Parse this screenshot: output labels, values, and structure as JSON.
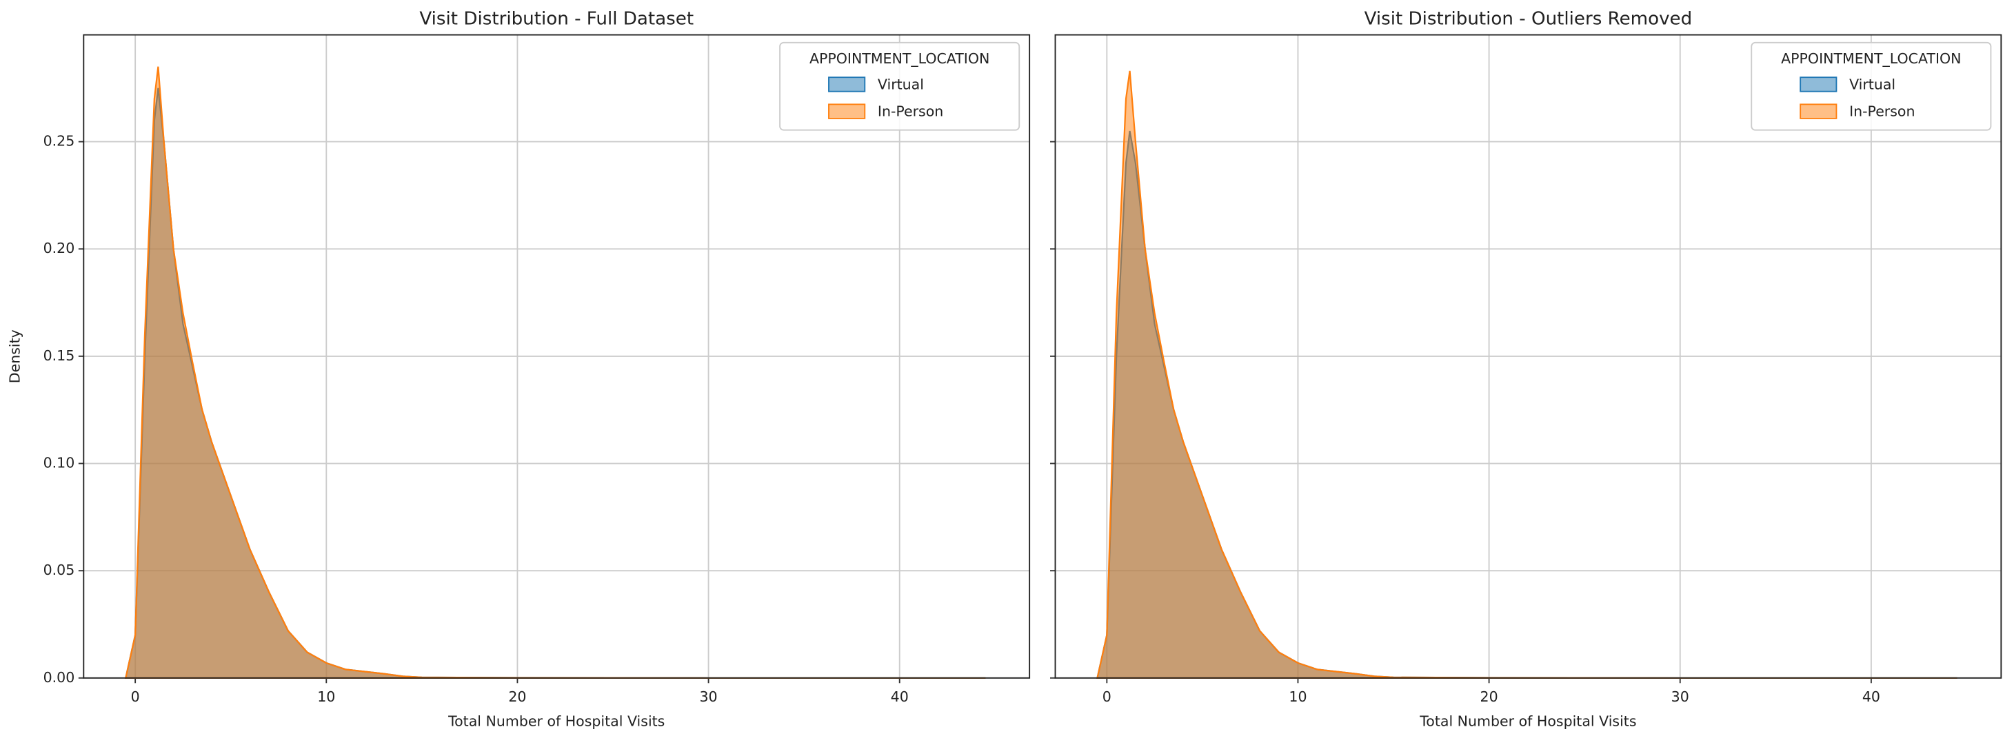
{
  "chart_data": [
    {
      "type": "kde",
      "title": "Visit Distribution - Full Dataset",
      "xlabel": "Total Number of Hospital Visits",
      "ylabel": "Density",
      "legend_title": "APPOINTMENT_LOCATION",
      "legend": "upper right",
      "grid": true,
      "x": [
        -0.5,
        0,
        0.5,
        1,
        1.2,
        1.5,
        2,
        2.5,
        3,
        3.5,
        4,
        5,
        6,
        7,
        8,
        9,
        10,
        11,
        12,
        13,
        14,
        15,
        20,
        30,
        44.5
      ],
      "series": [
        {
          "name": "Virtual",
          "color": "#1f77b4",
          "values": [
            0,
            0.02,
            0.15,
            0.26,
            0.275,
            0.25,
            0.2,
            0.165,
            0.145,
            0.125,
            0.11,
            0.085,
            0.06,
            0.04,
            0.022,
            0.012,
            0.007,
            0.004,
            0.003,
            0.002,
            0.0008,
            0.0003,
            0.0001,
            0,
            0
          ]
        },
        {
          "name": "In-Person",
          "color": "#ff7f0e",
          "values": [
            0,
            0.02,
            0.16,
            0.27,
            0.285,
            0.25,
            0.2,
            0.17,
            0.147,
            0.125,
            0.11,
            0.085,
            0.06,
            0.04,
            0.022,
            0.012,
            0.007,
            0.004,
            0.003,
            0.002,
            0.0008,
            0.0003,
            0.0001,
            0,
            0
          ]
        }
      ],
      "xlim": [
        -2.7,
        46.8
      ],
      "xticks": [
        0,
        10,
        20,
        30,
        40
      ],
      "ylim": [
        0,
        0.2998
      ],
      "yticks": [
        {
          "value": 0,
          "label": "0.00"
        },
        {
          "value": 0.05,
          "label": "0.05"
        },
        {
          "value": 0.1,
          "label": "0.10"
        },
        {
          "value": 0.15,
          "label": "0.15"
        },
        {
          "value": 0.2,
          "label": "0.20"
        },
        {
          "value": 0.25,
          "label": "0.25"
        }
      ]
    },
    {
      "type": "kde",
      "title": "Visit Distribution - Outliers Removed",
      "xlabel": "Total Number of Hospital Visits",
      "legend_title": "APPOINTMENT_LOCATION",
      "legend": "upper right",
      "grid": true,
      "sharey": true,
      "x": [
        -0.5,
        0,
        0.5,
        1,
        1.2,
        1.5,
        2,
        2.5,
        3,
        3.5,
        4,
        5,
        6,
        7,
        8,
        9,
        10,
        11,
        12,
        13,
        14,
        15,
        20,
        30,
        44.5
      ],
      "series": [
        {
          "name": "Virtual",
          "color": "#1f77b4",
          "values": [
            0,
            0.02,
            0.15,
            0.24,
            0.255,
            0.24,
            0.2,
            0.165,
            0.145,
            0.125,
            0.11,
            0.085,
            0.06,
            0.04,
            0.022,
            0.012,
            0.007,
            0.004,
            0.003,
            0.002,
            0.0008,
            0.0003,
            0.0001,
            0,
            0
          ]
        },
        {
          "name": "In-Person",
          "color": "#ff7f0e",
          "values": [
            0,
            0.02,
            0.17,
            0.27,
            0.283,
            0.25,
            0.2,
            0.17,
            0.147,
            0.125,
            0.11,
            0.085,
            0.06,
            0.04,
            0.022,
            0.012,
            0.007,
            0.004,
            0.003,
            0.002,
            0.0008,
            0.0003,
            0.0001,
            0,
            0
          ]
        }
      ],
      "xlim": [
        -2.7,
        46.8
      ],
      "xticks": [
        0,
        10,
        20,
        30,
        40
      ],
      "ylim": [
        0,
        0.2998
      ]
    }
  ]
}
